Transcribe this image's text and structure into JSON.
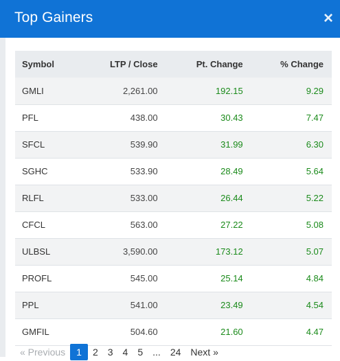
{
  "modal": {
    "title": "Top Gainers",
    "close_glyph": "×"
  },
  "table": {
    "headers": [
      "Symbol",
      "LTP / Close",
      "Pt. Change",
      "% Change"
    ],
    "rows": [
      [
        "GMLI",
        "2,261.00",
        "192.15",
        "9.29"
      ],
      [
        "PFL",
        "438.00",
        "30.43",
        "7.47"
      ],
      [
        "SFCL",
        "539.90",
        "31.99",
        "6.30"
      ],
      [
        "SGHC",
        "533.90",
        "28.49",
        "5.64"
      ],
      [
        "RLFL",
        "533.00",
        "26.44",
        "5.22"
      ],
      [
        "CFCL",
        "563.00",
        "27.22",
        "5.08"
      ],
      [
        "ULBSL",
        "3,590.00",
        "173.12",
        "5.07"
      ],
      [
        "PROFL",
        "545.00",
        "25.14",
        "4.84"
      ],
      [
        "PPL",
        "541.00",
        "23.49",
        "4.54"
      ],
      [
        "GMFIL",
        "504.60",
        "21.60",
        "4.47"
      ]
    ]
  },
  "pagination": {
    "previous": "« Previous",
    "pages": [
      "1",
      "2",
      "3",
      "4",
      "5",
      "...",
      "24"
    ],
    "active_page": "1",
    "next": "Next »"
  },
  "colors": {
    "header": "#1073d6",
    "positive": "#1a8a1a",
    "active_page": "#1073d6"
  }
}
